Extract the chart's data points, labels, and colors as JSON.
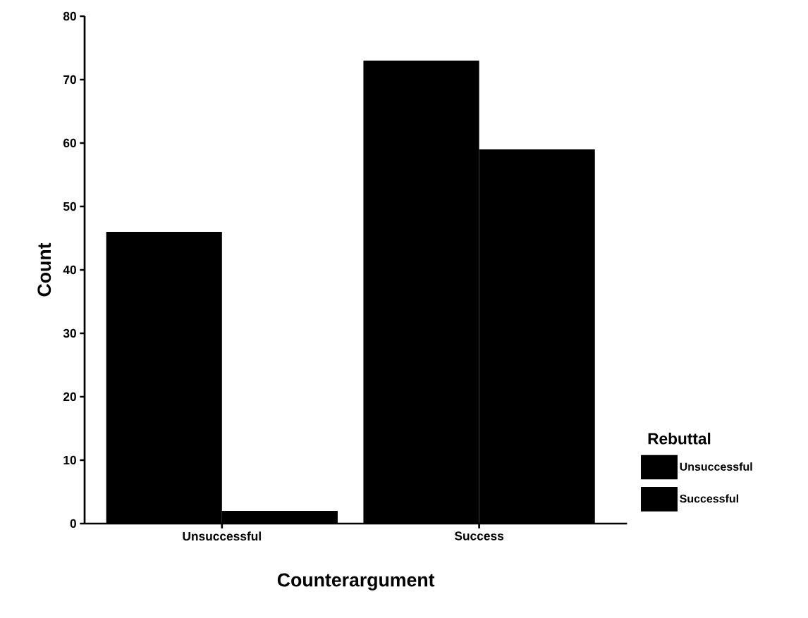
{
  "chart_data": {
    "type": "bar",
    "xlabel": "Counterargument",
    "ylabel": "Count",
    "legend_title": "Rebuttal",
    "categories": [
      "Unsuccessful",
      "Success"
    ],
    "series": [
      {
        "name": "Unsuccessful",
        "color": "#000000",
        "values": [
          46,
          73
        ]
      },
      {
        "name": "Successful",
        "color": "#000000",
        "values": [
          2,
          59
        ]
      }
    ],
    "ylim": [
      0,
      80
    ],
    "yticks": [
      0,
      10,
      20,
      30,
      40,
      50,
      60,
      70,
      80
    ],
    "legend": "right"
  }
}
